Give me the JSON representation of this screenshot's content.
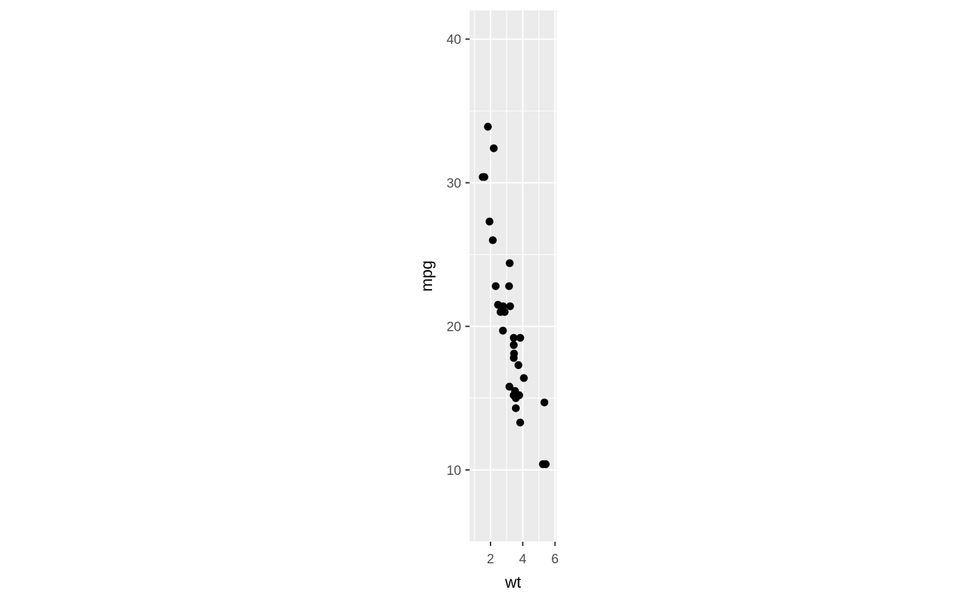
{
  "chart_data": {
    "type": "scatter",
    "title": "",
    "xlabel": "wt",
    "ylabel": "mpg",
    "xlim": [
      0.7,
      6.1
    ],
    "ylim": [
      5,
      42
    ],
    "xticks": [
      2,
      4,
      6
    ],
    "yticks": [
      10,
      20,
      30,
      40
    ],
    "grid": true,
    "colors": {
      "panel": "#ebebeb",
      "grid": "#ffffff",
      "point": "#000000",
      "tick": "#333333"
    },
    "points": [
      {
        "x": 2.62,
        "y": 21.0
      },
      {
        "x": 2.875,
        "y": 21.0
      },
      {
        "x": 2.32,
        "y": 22.8
      },
      {
        "x": 3.215,
        "y": 21.4
      },
      {
        "x": 3.44,
        "y": 18.7
      },
      {
        "x": 3.46,
        "y": 18.1
      },
      {
        "x": 3.57,
        "y": 14.3
      },
      {
        "x": 3.19,
        "y": 24.4
      },
      {
        "x": 3.15,
        "y": 22.8
      },
      {
        "x": 3.44,
        "y": 19.2
      },
      {
        "x": 3.44,
        "y": 17.8
      },
      {
        "x": 4.07,
        "y": 16.4
      },
      {
        "x": 3.73,
        "y": 17.3
      },
      {
        "x": 3.78,
        "y": 15.2
      },
      {
        "x": 5.25,
        "y": 10.4
      },
      {
        "x": 5.424,
        "y": 10.4
      },
      {
        "x": 5.345,
        "y": 14.7
      },
      {
        "x": 2.2,
        "y": 32.4
      },
      {
        "x": 1.615,
        "y": 30.4
      },
      {
        "x": 1.835,
        "y": 33.9
      },
      {
        "x": 2.465,
        "y": 21.5
      },
      {
        "x": 3.52,
        "y": 15.5
      },
      {
        "x": 3.435,
        "y": 15.2
      },
      {
        "x": 3.84,
        "y": 13.3
      },
      {
        "x": 3.845,
        "y": 19.2
      },
      {
        "x": 1.935,
        "y": 27.3
      },
      {
        "x": 2.14,
        "y": 26.0
      },
      {
        "x": 1.513,
        "y": 30.4
      },
      {
        "x": 3.17,
        "y": 15.8
      },
      {
        "x": 2.77,
        "y": 19.7
      },
      {
        "x": 3.57,
        "y": 15.0
      },
      {
        "x": 2.78,
        "y": 21.4
      }
    ]
  }
}
